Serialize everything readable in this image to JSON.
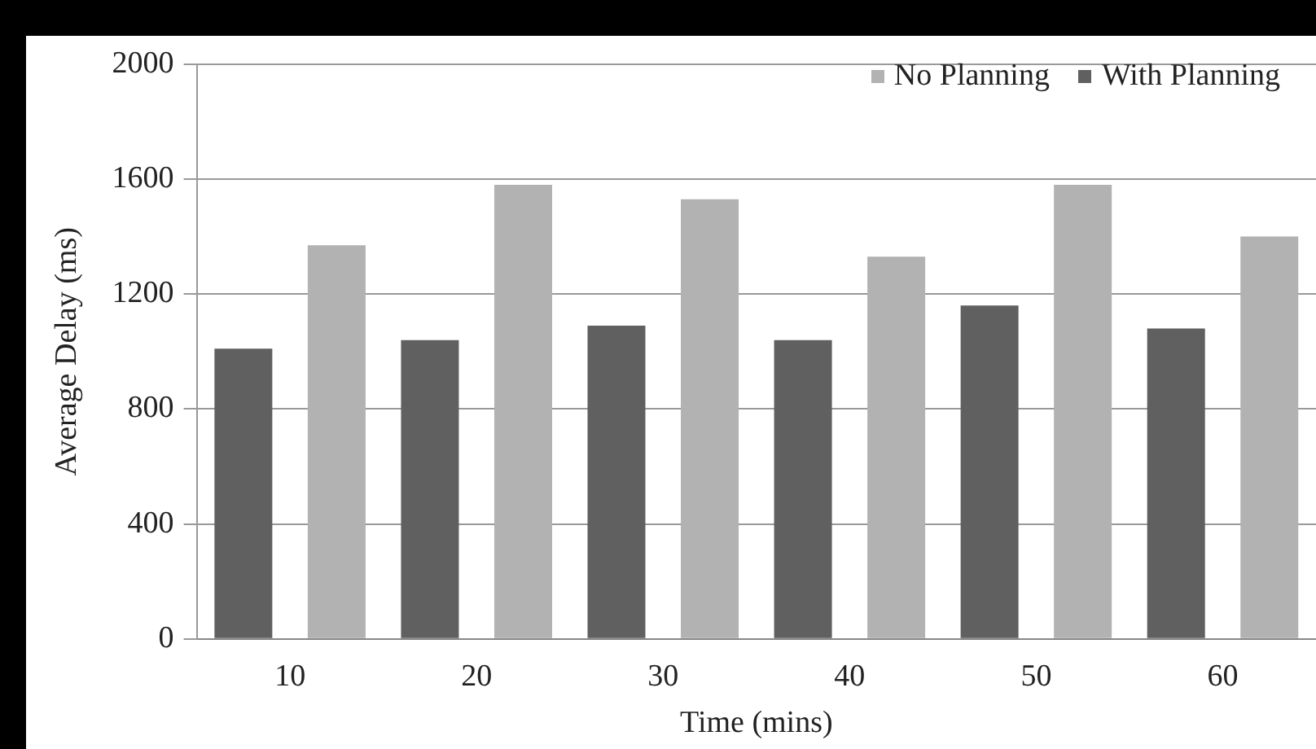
{
  "chart_data": {
    "type": "bar",
    "xlabel": "Time (mins)",
    "ylabel": "Average Delay (ms)",
    "categories": [
      "10",
      "20",
      "30",
      "40",
      "50",
      "60"
    ],
    "series": [
      {
        "name": "With Planning",
        "color": "#606060",
        "values": [
          1010,
          1040,
          1090,
          1040,
          1160,
          1080
        ]
      },
      {
        "name": "No Planning",
        "color": "#b2b2b2",
        "values": [
          1370,
          1580,
          1530,
          1330,
          1580,
          1400
        ]
      }
    ],
    "ylim": [
      0,
      2000
    ],
    "yticks": [
      0,
      400,
      800,
      1200,
      1600,
      2000
    ],
    "grid": "y",
    "legend": "top right"
  }
}
